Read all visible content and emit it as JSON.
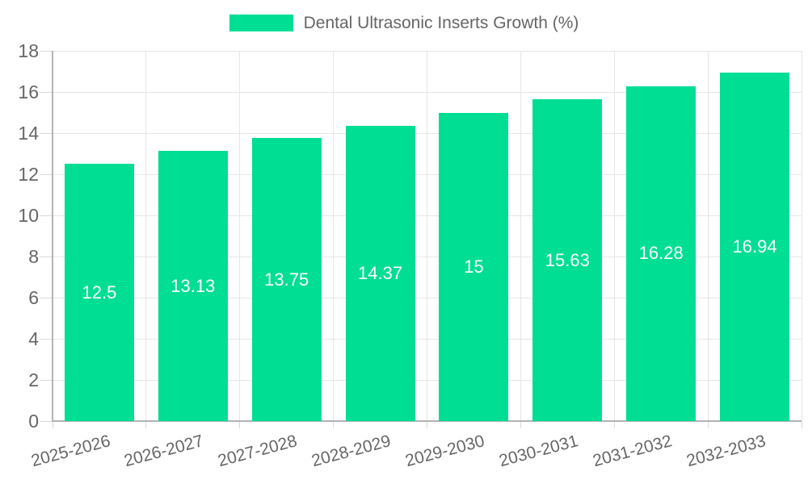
{
  "chart_data": {
    "type": "bar",
    "title": "Dental Ultrasonic Inserts Growth (%)",
    "categories": [
      "2025-2026",
      "2026-2027",
      "2027-2028",
      "2028-2029",
      "2029-2030",
      "2030-2031",
      "2031-2032",
      "2032-2033"
    ],
    "series": [
      {
        "name": "Dental Ultrasonic Inserts Growth (%)",
        "values": [
          12.5,
          13.13,
          13.75,
          14.37,
          15,
          15.63,
          16.28,
          16.94
        ],
        "data_labels": [
          "12.5",
          "13.13",
          "13.75",
          "14.37",
          "15",
          "15.63",
          "16.28",
          "16.94"
        ]
      }
    ],
    "ylim": [
      0,
      18
    ],
    "yticks": [
      0,
      2,
      4,
      6,
      8,
      10,
      12,
      14,
      16,
      18
    ],
    "grid": true,
    "legend_position": "top",
    "x_label_rotation_deg": -15,
    "colors": {
      "bar": "#00DE94",
      "value_label": "#ffffff",
      "axis_text": "#666666",
      "grid_line": "#e6e6e6",
      "axis_line": "#b3b3b3",
      "tick_mark": "#d9d9d9"
    }
  }
}
